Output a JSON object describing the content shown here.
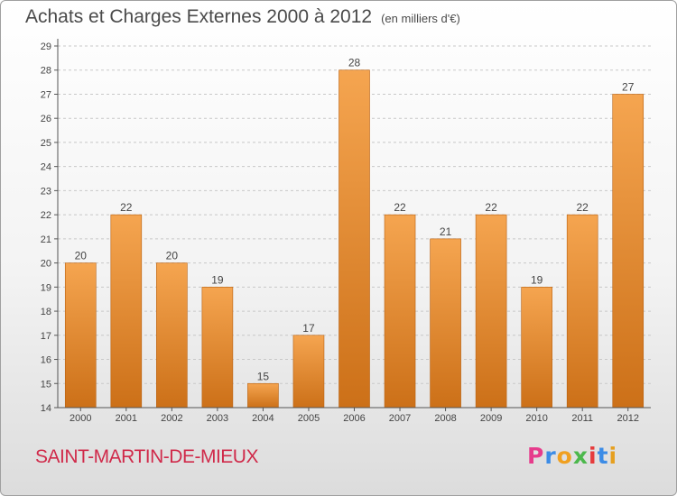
{
  "header": {
    "title": "Achats et Charges Externes 2000 à 2012",
    "subtitle": "(en milliers d'€)"
  },
  "footer": {
    "commune": "SAINT-MARTIN-DE-MIEUX",
    "logo": "Proxiti",
    "logo_colors": [
      "#e63c8c",
      "#3c8ce6",
      "#f0a020",
      "#4cb84c",
      "#e63c3c",
      "#3c8ce6",
      "#e6a020"
    ]
  },
  "chart_data": {
    "type": "bar",
    "categories": [
      "2000",
      "2001",
      "2002",
      "2003",
      "2004",
      "2005",
      "2006",
      "2007",
      "2008",
      "2009",
      "2010",
      "2011",
      "2012"
    ],
    "values": [
      20,
      22,
      20,
      19,
      15,
      17,
      28,
      22,
      21,
      22,
      19,
      22,
      27
    ],
    "title": "Achats et Charges Externes 2000 à 2012",
    "xlabel": "",
    "ylabel": "",
    "ylim": [
      14,
      29
    ],
    "yticks": [
      14,
      15,
      16,
      17,
      18,
      19,
      20,
      21,
      22,
      23,
      24,
      25,
      26,
      27,
      28,
      29
    ],
    "grid": "horizontal-dashed",
    "bar_color_top": "#f5a550",
    "bar_color_bottom": "#cc7018"
  }
}
